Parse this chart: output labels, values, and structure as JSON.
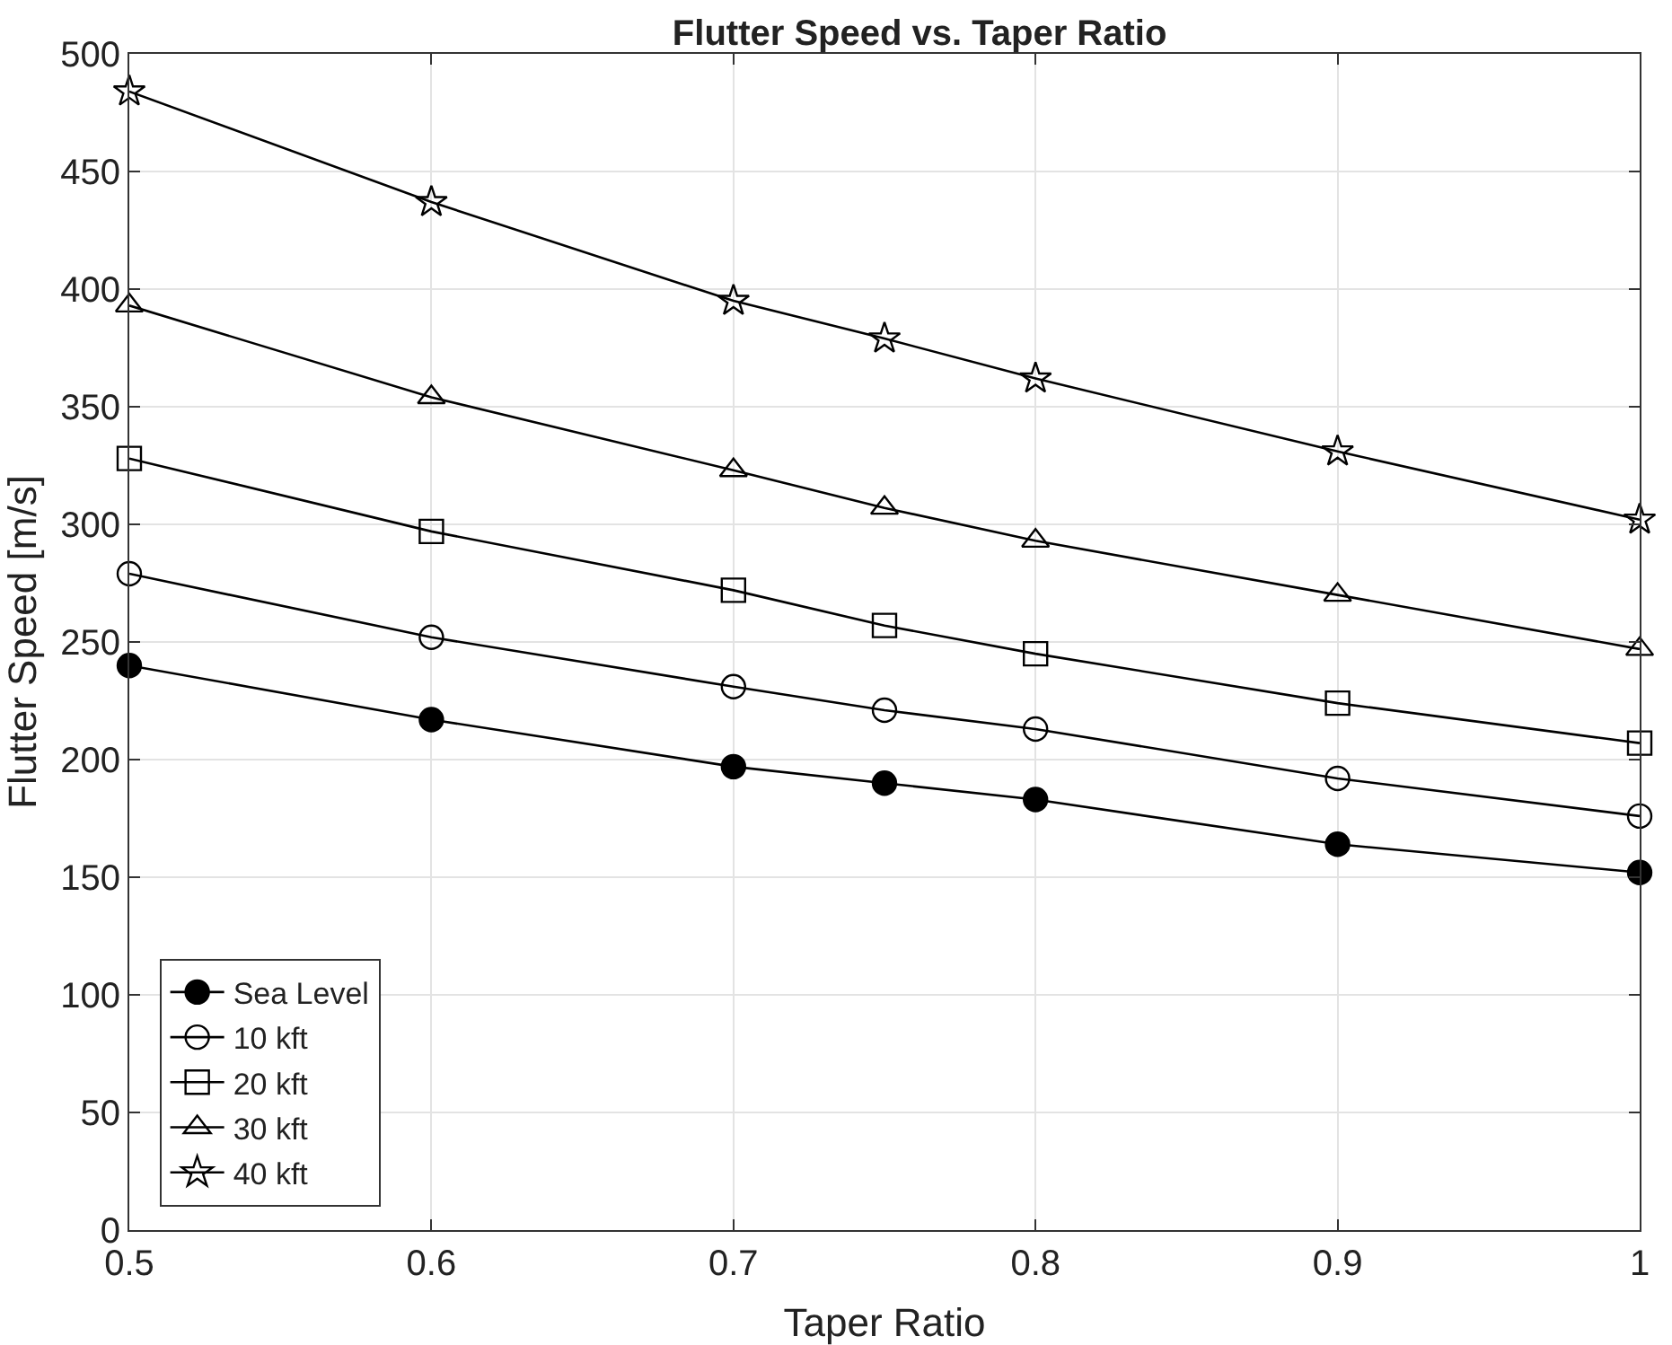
{
  "chart_data": {
    "type": "line",
    "title": "Flutter Speed vs. Taper Ratio",
    "xlabel": "Taper Ratio",
    "ylabel": "Flutter Speed [m/s]",
    "x": [
      0.5,
      0.6,
      0.7,
      0.75,
      0.8,
      0.9,
      1
    ],
    "series": [
      {
        "name": "Sea Level",
        "color": "#000000",
        "marker": "circle",
        "values": [
          240,
          217,
          197,
          190,
          183,
          164,
          152
        ]
      },
      {
        "name": "10 kft",
        "color": "#000000",
        "marker": "circle",
        "values": [
          279,
          252,
          231,
          221,
          213,
          192,
          176
        ]
      },
      {
        "name": "20 kft",
        "color": "#000000",
        "marker": "square",
        "values": [
          328,
          297,
          272,
          257,
          245,
          224,
          207
        ]
      },
      {
        "name": "30 kft",
        "color": "#000000",
        "marker": "triangle",
        "values": [
          393,
          354,
          323,
          307,
          293,
          270,
          247
        ]
      },
      {
        "name": "40 kft",
        "color": "#000000",
        "marker": "star",
        "values": [
          484,
          437,
          395,
          379,
          362,
          331,
          302
        ]
      }
    ],
    "xlim": [
      0.5,
      1
    ],
    "xticks": [
      0.5,
      0.6,
      0.7,
      0.8,
      0.9,
      1
    ],
    "ylim": [
      0,
      500
    ],
    "yticks": [
      0,
      50,
      100,
      150,
      200,
      250,
      300,
      350,
      400,
      450,
      500
    ],
    "grid": true,
    "legend": "bottom left",
    "line_style": "solid"
  }
}
